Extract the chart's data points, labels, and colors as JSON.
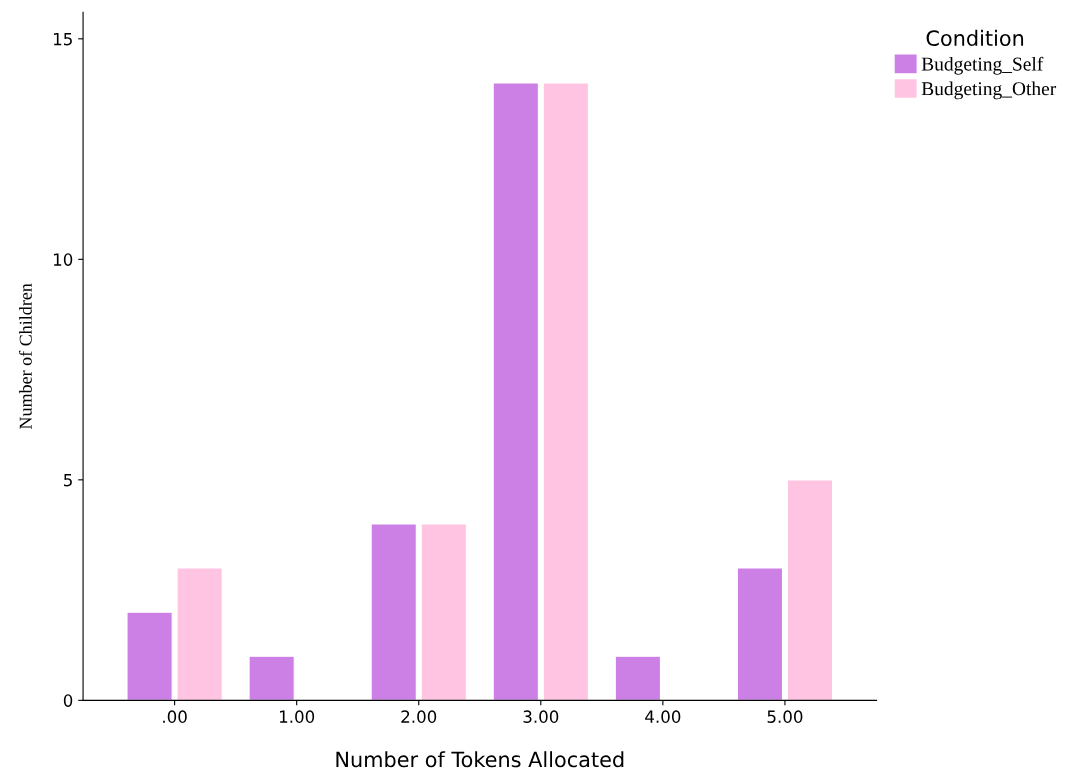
{
  "chart_data": {
    "type": "bar",
    "xlabel": "Number of Tokens Allocated",
    "ylabel": "Number of Children",
    "legend_title": "Condition",
    "categories": [
      ".00",
      "1.00",
      "2.00",
      "3.00",
      "4.00",
      "5.00"
    ],
    "series": [
      {
        "name": "Budgeting_Self",
        "color": "#cc80e6",
        "values": [
          2,
          1,
          4,
          14,
          1,
          3
        ]
      },
      {
        "name": "Budgeting_Other",
        "color": "#ffc4e1",
        "values": [
          3,
          null,
          4,
          14,
          null,
          5
        ]
      }
    ],
    "ylim": [
      0,
      15.6
    ],
    "yticks": [
      0,
      5,
      10,
      15
    ],
    "grid": false,
    "legend": "top right"
  }
}
